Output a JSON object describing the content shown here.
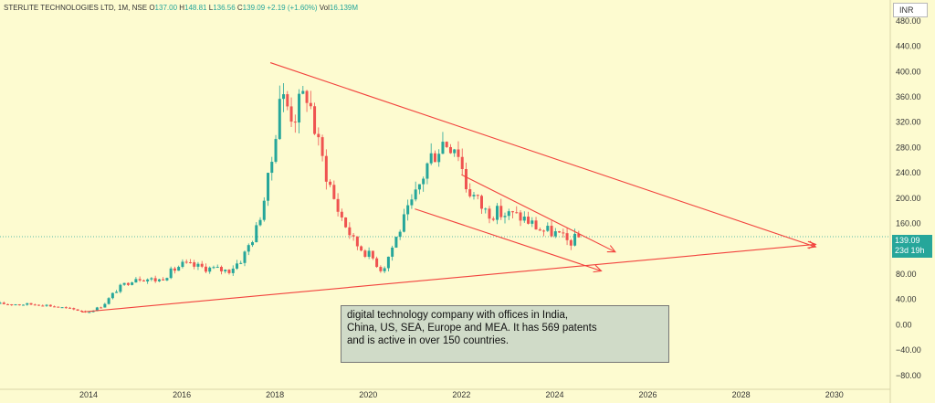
{
  "header": {
    "symbol": "STERLITE TECHNOLOGIES LTD, 1M, NSE",
    "o_label": "O",
    "o_value": "137.00",
    "h_label": "H",
    "h_value": "148.81",
    "l_label": "L",
    "l_value": "136.56",
    "c_label": "C",
    "c_value": "139.09",
    "change": "+2.19 (+1.60%)",
    "vol_label": "Vol",
    "vol_value": "16.139M"
  },
  "currency": "INR",
  "price_tag": {
    "price": "139.09",
    "countdown": "23d 19h"
  },
  "note": {
    "lines": [
      "digital technology company with offices in India,",
      "China, US, SEA, Europe and MEA.  It has 569 patents",
      "and is active in over 150 countries."
    ]
  },
  "colors": {
    "up": "#26a69a",
    "down": "#ef5350",
    "trendline": "#f2423d",
    "background": "#fdfbd0",
    "note_bg": "#d0dbc8"
  },
  "chart_data": {
    "type": "candlestick",
    "interval": "1M",
    "x_axis": {
      "type": "time",
      "range": [
        2012.1,
        2031.2
      ],
      "ticks": [
        "2014",
        "2016",
        "2018",
        "2020",
        "2022",
        "2024",
        "2026",
        "2028",
        "2030"
      ]
    },
    "y_axis": {
      "range": [
        -102,
        513
      ],
      "ticks": [
        "480.00",
        "440.00",
        "400.00",
        "360.00",
        "320.00",
        "280.00",
        "240.00",
        "200.00",
        "160.00",
        "120.00",
        "80.00",
        "40.00",
        "0.00",
        "−40.00",
        "−80.00"
      ],
      "position": "right",
      "currency": "INR"
    },
    "last_price": 139.09,
    "anchors": [
      [
        2012.1,
        33
      ],
      [
        2013.0,
        32
      ],
      [
        2013.6,
        25
      ],
      [
        2014.0,
        20
      ],
      [
        2014.3,
        30
      ],
      [
        2014.6,
        55
      ],
      [
        2015.0,
        75
      ],
      [
        2015.5,
        70
      ],
      [
        2016.0,
        95
      ],
      [
        2016.5,
        90
      ],
      [
        2017.0,
        85
      ],
      [
        2017.3,
        105
      ],
      [
        2017.6,
        150
      ],
      [
        2017.9,
        240
      ],
      [
        2018.1,
        365
      ],
      [
        2018.4,
        330
      ],
      [
        2018.7,
        370
      ],
      [
        2018.9,
        290
      ],
      [
        2019.3,
        190
      ],
      [
        2019.7,
        130
      ],
      [
        2020.1,
        105
      ],
      [
        2020.3,
        85
      ],
      [
        2020.7,
        155
      ],
      [
        2021.0,
        200
      ],
      [
        2021.3,
        260
      ],
      [
        2021.6,
        290
      ],
      [
        2021.9,
        285
      ],
      [
        2022.1,
        220
      ],
      [
        2022.5,
        180
      ],
      [
        2022.9,
        175
      ],
      [
        2023.3,
        170
      ],
      [
        2023.7,
        150
      ],
      [
        2024.0,
        145
      ],
      [
        2024.3,
        130
      ],
      [
        2024.55,
        139
      ]
    ],
    "trendlines": [
      {
        "name": "upper-resistance",
        "points": [
          [
            2017.9,
            414
          ],
          [
            2029.6,
            123
          ]
        ]
      },
      {
        "name": "long-term-support",
        "points": [
          [
            2013.85,
            20
          ],
          [
            2029.6,
            127
          ]
        ]
      },
      {
        "name": "channel-upper",
        "points": [
          [
            2022.0,
            237
          ],
          [
            2025.3,
            115
          ]
        ]
      },
      {
        "name": "channel-lower",
        "points": [
          [
            2021.0,
            183
          ],
          [
            2025.0,
            85
          ]
        ]
      }
    ]
  }
}
